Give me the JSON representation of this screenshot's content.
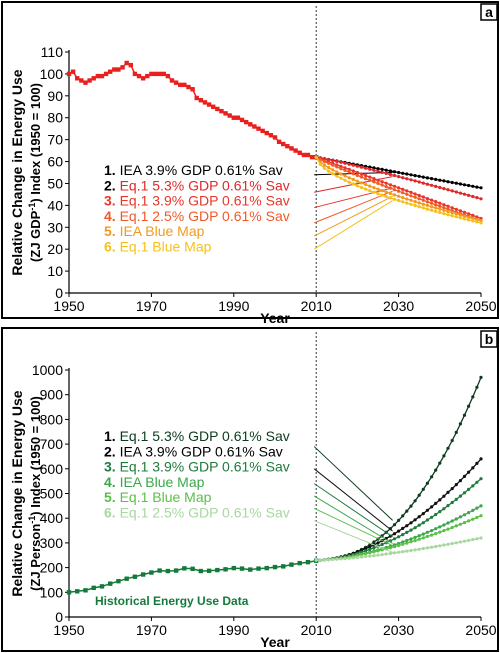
{
  "chart_data": [
    {
      "panel": "a",
      "type": "line",
      "xlabel": "Year",
      "ylabel_line1": "Relative Change in Energy Use",
      "ylabel_line2_pre": "(ZJ GDP",
      "ylabel_line2_sup": "-1",
      "ylabel_line2_post": ") Index (1950 = 100)",
      "xlim": [
        1950,
        2050
      ],
      "ylim": [
        0,
        110
      ],
      "xticks": [
        1950,
        1970,
        1990,
        2010,
        2030,
        2050
      ],
      "yticks": [
        0,
        10,
        20,
        30,
        40,
        50,
        60,
        70,
        80,
        90,
        100,
        110
      ],
      "divider_x": 2010,
      "historical": {
        "color": "#e8201e",
        "x": [
          1950,
          1951,
          1952,
          1953,
          1954,
          1955,
          1956,
          1957,
          1958,
          1959,
          1960,
          1961,
          1962,
          1963,
          1964,
          1965,
          1966,
          1967,
          1968,
          1969,
          1970,
          1971,
          1972,
          1973,
          1974,
          1975,
          1976,
          1977,
          1978,
          1979,
          1980,
          1981,
          1982,
          1983,
          1984,
          1985,
          1986,
          1987,
          1988,
          1989,
          1990,
          1991,
          1992,
          1993,
          1994,
          1995,
          1996,
          1997,
          1998,
          1999,
          2000,
          2001,
          2002,
          2003,
          2004,
          2005,
          2006,
          2007,
          2008,
          2009,
          2010
        ],
        "y": [
          100,
          101,
          98,
          97,
          96,
          97,
          98,
          99,
          99,
          100,
          101,
          102,
          102,
          103,
          105,
          104,
          100,
          99,
          98,
          99,
          100,
          100,
          100,
          100,
          99,
          97,
          96,
          95,
          95,
          94,
          93,
          89,
          88,
          87,
          86,
          85,
          84,
          83,
          82,
          81,
          80,
          80,
          79,
          78,
          77,
          76,
          75,
          74,
          73,
          72,
          71,
          69,
          68,
          67,
          66,
          65,
          64,
          63,
          63,
          62,
          62
        ]
      },
      "projections": [
        {
          "num": "1.",
          "label": "IEA   3.9% GDP 0.61% Sav",
          "color": "#000000",
          "num_color": "#000000",
          "text_color": "#000000",
          "x": [
            2010,
            2050
          ],
          "y": [
            62,
            48
          ],
          "curve": 1.0,
          "label_year": 2010,
          "label_y": 54
        },
        {
          "num": "2.",
          "label": "Eq.1 5.3% GDP 0.61% Sav",
          "color": "#e0282a",
          "num_color": "#000000",
          "text_color": "#e0282a",
          "x": [
            2010,
            2050
          ],
          "y": [
            62,
            43
          ],
          "curve": 1.1,
          "label_year": 2010,
          "label_y": 46
        },
        {
          "num": "3.",
          "label": "Eq.1 3.9% GDP 0.61% Sav",
          "color": "#e8362a",
          "num_color": "#e8362a",
          "text_color": "#e8362a",
          "x": [
            2010,
            2050
          ],
          "y": [
            62,
            34
          ],
          "curve": 1.0,
          "label_year": 2010,
          "label_y": 39
        },
        {
          "num": "4.",
          "label": "Eq.1 2.5% GDP 0.61% Sav",
          "color": "#f05a28",
          "num_color": "#f05a28",
          "text_color": "#f05a28",
          "x": [
            2010,
            2050
          ],
          "y": [
            62,
            33
          ],
          "curve": 0.9,
          "label_year": 2010,
          "label_y": 32
        },
        {
          "num": "5.",
          "label": "IEA Blue Map",
          "color": "#f39a1e",
          "num_color": "#f39a1e",
          "text_color": "#f39a1e",
          "x": [
            2010,
            2050
          ],
          "y": [
            62,
            33
          ],
          "curve": 0.7,
          "label_year": 2010,
          "label_y": 26
        },
        {
          "num": "6.",
          "label": "Eq.1 Blue Map",
          "color": "#f6c21a",
          "num_color": "#f6c21a",
          "text_color": "#f6c21a",
          "x": [
            2010,
            2050
          ],
          "y": [
            62,
            32
          ],
          "curve": 0.6,
          "label_year": 2010,
          "label_y": 20
        }
      ]
    },
    {
      "panel": "b",
      "type": "line",
      "xlabel": "Year",
      "ylabel_line1": "Relative Change in Energy Use",
      "ylabel_line2_pre": "(ZJ Person",
      "ylabel_line2_sup": "-1",
      "ylabel_line2_post": ") Index (1950 = 100)",
      "xlim": [
        1950,
        2050
      ],
      "ylim": [
        0,
        1000
      ],
      "xticks": [
        1950,
        1970,
        1990,
        2010,
        2030,
        2050
      ],
      "yticks": [
        0,
        100,
        200,
        300,
        400,
        500,
        600,
        700,
        800,
        900,
        1000
      ],
      "divider_x": 2010,
      "annotation": "Historical Energy Use Data",
      "historical": {
        "color": "#147a3c",
        "x": [
          1950,
          1952,
          1954,
          1956,
          1958,
          1960,
          1962,
          1964,
          1966,
          1968,
          1970,
          1972,
          1974,
          1976,
          1978,
          1980,
          1982,
          1984,
          1986,
          1988,
          1990,
          1992,
          1994,
          1996,
          1998,
          2000,
          2002,
          2004,
          2006,
          2008,
          2010
        ],
        "y": [
          100,
          104,
          108,
          118,
          124,
          135,
          145,
          155,
          163,
          172,
          180,
          188,
          186,
          188,
          197,
          195,
          186,
          187,
          190,
          193,
          198,
          196,
          192,
          196,
          198,
          202,
          205,
          212,
          218,
          222,
          228
        ]
      },
      "projections": [
        {
          "num": "1.",
          "label": "Eq.1 5.3% GDP 0.61% Sav",
          "color": "#0d3b1f",
          "num_color": "#000000",
          "text_color": "#0d3b1f",
          "x": [
            2010,
            2050
          ],
          "y": [
            230,
            970
          ],
          "curve": 2.2,
          "label_year": 2010,
          "label_y": 690
        },
        {
          "num": "2.",
          "label": "IEA   3.9% GDP 0.61% Sav",
          "color": "#111111",
          "num_color": "#000000",
          "text_color": "#000000",
          "x": [
            2010,
            2050
          ],
          "y": [
            230,
            640
          ],
          "curve": 1.8,
          "label_year": 2010,
          "label_y": 600
        },
        {
          "num": "3.",
          "label": "Eq.1 3.9% GDP 0.61% Sav",
          "color": "#1e7b3c",
          "num_color": "#1e7b3c",
          "text_color": "#1e7b3c",
          "x": [
            2010,
            2050
          ],
          "y": [
            230,
            560
          ],
          "curve": 1.8,
          "label_year": 2010,
          "label_y": 540
        },
        {
          "num": "4.",
          "label": "IEA Blue Map",
          "color": "#3aa84a",
          "num_color": "#3aa84a",
          "text_color": "#3aa84a",
          "x": [
            2010,
            2050
          ],
          "y": [
            230,
            450
          ],
          "curve": 1.7,
          "label_year": 2010,
          "label_y": 490
        },
        {
          "num": "5.",
          "label": "Eq.1 Blue Map",
          "color": "#5cbf48",
          "num_color": "#5cbf48",
          "text_color": "#5cbf48",
          "x": [
            2010,
            2050
          ],
          "y": [
            230,
            410
          ],
          "curve": 1.6,
          "label_year": 2010,
          "label_y": 440
        },
        {
          "num": "6.",
          "label": "Eq.1 2.5% GDP 0.61% Sav",
          "color": "#a8d8a0",
          "num_color": "#a8d8a0",
          "text_color": "#a8d8a0",
          "x": [
            2010,
            2050
          ],
          "y": [
            230,
            320
          ],
          "curve": 1.5,
          "label_year": 2010,
          "label_y": 390
        }
      ]
    }
  ]
}
